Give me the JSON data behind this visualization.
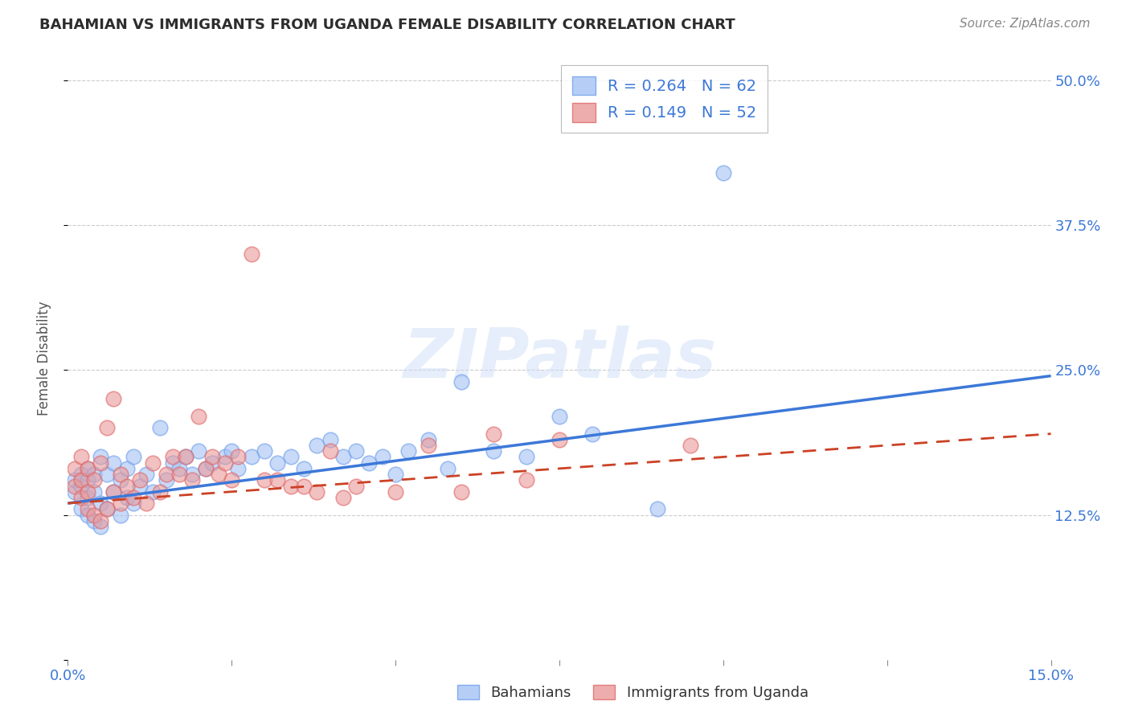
{
  "title": "BAHAMIAN VS IMMIGRANTS FROM UGANDA FEMALE DISABILITY CORRELATION CHART",
  "source": "Source: ZipAtlas.com",
  "ylabel": "Female Disability",
  "xlim": [
    0.0,
    0.15
  ],
  "ylim": [
    0.0,
    0.52
  ],
  "xticks": [
    0.0,
    0.025,
    0.05,
    0.075,
    0.1,
    0.125,
    0.15
  ],
  "xticklabels": [
    "0.0%",
    "",
    "",
    "",
    "",
    "",
    "15.0%"
  ],
  "yticks_right": [
    0.0,
    0.125,
    0.25,
    0.375,
    0.5
  ],
  "ytick_labels_right": [
    "",
    "12.5%",
    "25.0%",
    "37.5%",
    "50.0%"
  ],
  "grid_color": "#cccccc",
  "background_color": "#ffffff",
  "blue_fill": "#a4c2f4",
  "blue_edge": "#6d9eeb",
  "pink_fill": "#ea9999",
  "pink_edge": "#e06666",
  "blue_line_color": "#3c78d8",
  "pink_line_color": "#cc4125",
  "R_blue": 0.264,
  "N_blue": 62,
  "R_pink": 0.149,
  "N_pink": 52,
  "legend_label_blue": "Bahamians",
  "legend_label_pink": "Immigrants from Uganda",
  "watermark_text": "ZIPatlas",
  "blue_trend_x0": 0.0,
  "blue_trend_y0": 0.135,
  "blue_trend_x1": 0.15,
  "blue_trend_y1": 0.245,
  "pink_trend_x0": 0.0,
  "pink_trend_y0": 0.135,
  "pink_trend_x1": 0.15,
  "pink_trend_y1": 0.195,
  "blue_scatter_x": [
    0.001,
    0.001,
    0.002,
    0.002,
    0.002,
    0.003,
    0.003,
    0.003,
    0.003,
    0.004,
    0.004,
    0.004,
    0.005,
    0.005,
    0.005,
    0.006,
    0.006,
    0.007,
    0.007,
    0.008,
    0.008,
    0.009,
    0.009,
    0.01,
    0.01,
    0.011,
    0.012,
    0.013,
    0.014,
    0.015,
    0.016,
    0.017,
    0.018,
    0.019,
    0.02,
    0.021,
    0.022,
    0.024,
    0.025,
    0.026,
    0.028,
    0.03,
    0.032,
    0.034,
    0.036,
    0.038,
    0.04,
    0.042,
    0.044,
    0.046,
    0.048,
    0.05,
    0.052,
    0.055,
    0.058,
    0.06,
    0.065,
    0.07,
    0.075,
    0.08,
    0.09,
    0.1
  ],
  "blue_scatter_y": [
    0.145,
    0.155,
    0.13,
    0.15,
    0.16,
    0.125,
    0.14,
    0.155,
    0.165,
    0.12,
    0.145,
    0.16,
    0.115,
    0.135,
    0.175,
    0.13,
    0.16,
    0.145,
    0.17,
    0.125,
    0.155,
    0.14,
    0.165,
    0.135,
    0.175,
    0.15,
    0.16,
    0.145,
    0.2,
    0.155,
    0.17,
    0.165,
    0.175,
    0.16,
    0.18,
    0.165,
    0.17,
    0.175,
    0.18,
    0.165,
    0.175,
    0.18,
    0.17,
    0.175,
    0.165,
    0.185,
    0.19,
    0.175,
    0.18,
    0.17,
    0.175,
    0.16,
    0.18,
    0.19,
    0.165,
    0.24,
    0.18,
    0.175,
    0.21,
    0.195,
    0.13,
    0.42
  ],
  "pink_scatter_x": [
    0.001,
    0.001,
    0.002,
    0.002,
    0.002,
    0.003,
    0.003,
    0.003,
    0.004,
    0.004,
    0.005,
    0.005,
    0.006,
    0.006,
    0.007,
    0.007,
    0.008,
    0.008,
    0.009,
    0.01,
    0.011,
    0.012,
    0.013,
    0.014,
    0.015,
    0.016,
    0.017,
    0.018,
    0.019,
    0.02,
    0.021,
    0.022,
    0.023,
    0.024,
    0.025,
    0.026,
    0.028,
    0.03,
    0.032,
    0.034,
    0.036,
    0.038,
    0.04,
    0.042,
    0.044,
    0.05,
    0.055,
    0.06,
    0.065,
    0.07,
    0.075,
    0.095
  ],
  "pink_scatter_y": [
    0.15,
    0.165,
    0.14,
    0.155,
    0.175,
    0.13,
    0.145,
    0.165,
    0.125,
    0.155,
    0.12,
    0.17,
    0.13,
    0.2,
    0.145,
    0.225,
    0.135,
    0.16,
    0.15,
    0.14,
    0.155,
    0.135,
    0.17,
    0.145,
    0.16,
    0.175,
    0.16,
    0.175,
    0.155,
    0.21,
    0.165,
    0.175,
    0.16,
    0.17,
    0.155,
    0.175,
    0.35,
    0.155,
    0.155,
    0.15,
    0.15,
    0.145,
    0.18,
    0.14,
    0.15,
    0.145,
    0.185,
    0.145,
    0.195,
    0.155,
    0.19,
    0.185
  ]
}
